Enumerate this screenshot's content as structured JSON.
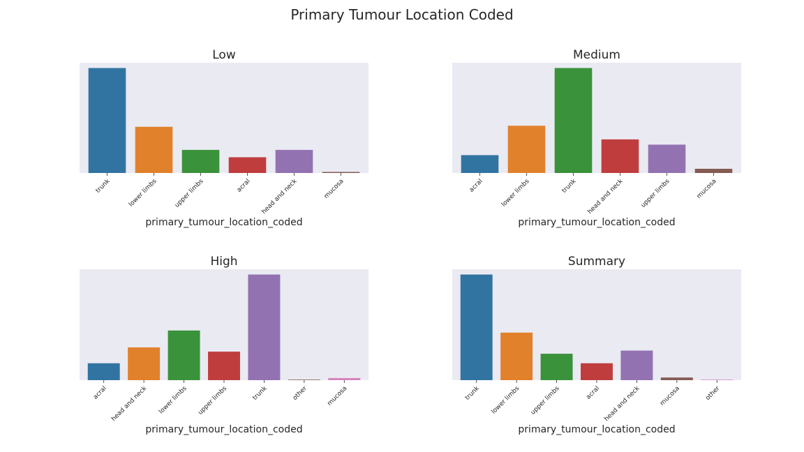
{
  "title": "Primary Tumour Location Coded",
  "colors": {
    "background": "#eaeaf2",
    "palette": [
      "#3274a1",
      "#e1812c",
      "#3a923a",
      "#c03d3e",
      "#9372b2",
      "#845b53",
      "#d684bd"
    ]
  },
  "chart_data": [
    {
      "type": "bar",
      "title": "Low",
      "xlabel": "primary_tumour_location_coded",
      "ylabel": "",
      "categories": [
        "trunk",
        "lower limbs",
        "upper limbs",
        "acral",
        "head and neck",
        "mucosa"
      ],
      "values": [
        100,
        44,
        22,
        15,
        22,
        1
      ],
      "ylim": [
        0,
        105
      ],
      "grid": false
    },
    {
      "type": "bar",
      "title": "Medium",
      "xlabel": "primary_tumour_location_coded",
      "ylabel": "",
      "categories": [
        "acral",
        "lower limbs",
        "trunk",
        "head and neck",
        "upper limbs",
        "mucosa"
      ],
      "values": [
        17,
        45,
        100,
        32,
        27,
        4
      ],
      "ylim": [
        0,
        105
      ],
      "grid": false
    },
    {
      "type": "bar",
      "title": "High",
      "xlabel": "primary_tumour_location_coded",
      "ylabel": "",
      "categories": [
        "acral",
        "head and neck",
        "lower limbs",
        "upper limbs",
        "trunk",
        "other",
        "mucosa"
      ],
      "values": [
        16,
        31,
        47,
        27,
        100,
        0.5,
        2
      ],
      "ylim": [
        0,
        105
      ],
      "grid": false
    },
    {
      "type": "bar",
      "title": "Summary",
      "xlabel": "primary_tumour_location_coded",
      "ylabel": "",
      "categories": [
        "trunk",
        "lower limbs",
        "upper limbs",
        "acral",
        "head and neck",
        "mucosa",
        "other"
      ],
      "values": [
        100,
        45,
        25,
        16,
        28,
        2.5,
        0.5
      ],
      "ylim": [
        0,
        105
      ],
      "grid": false
    }
  ]
}
